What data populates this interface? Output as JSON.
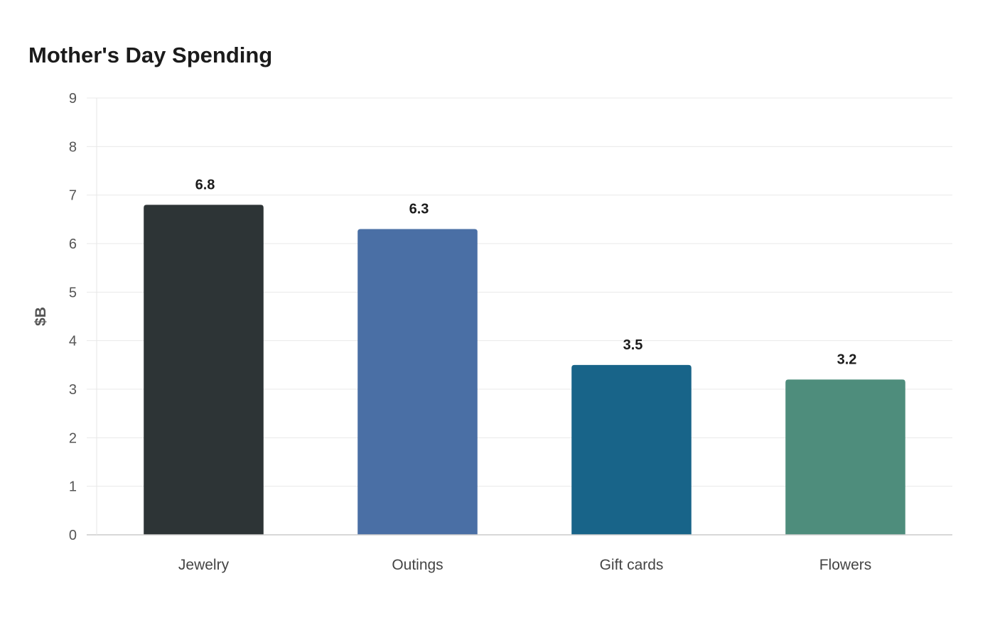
{
  "chart_data": {
    "type": "bar",
    "title": "Mother's Day Spending",
    "ylabel": "$B",
    "xlabel": "",
    "categories": [
      "Jewelry",
      "Outings",
      "Gift cards",
      "Flowers"
    ],
    "values": [
      6.8,
      6.3,
      3.5,
      3.2
    ],
    "value_labels": [
      "6.8",
      "6.3",
      "3.5",
      "3.2"
    ],
    "colors": [
      "#2d3436",
      "#4a6fa5",
      "#186489",
      "#4e8d7c"
    ],
    "ylim": [
      0,
      9
    ],
    "yticks": [
      "0",
      "1",
      "2",
      "3",
      "4",
      "5",
      "6",
      "7",
      "8",
      "9"
    ],
    "grid": true,
    "legend": "none"
  }
}
